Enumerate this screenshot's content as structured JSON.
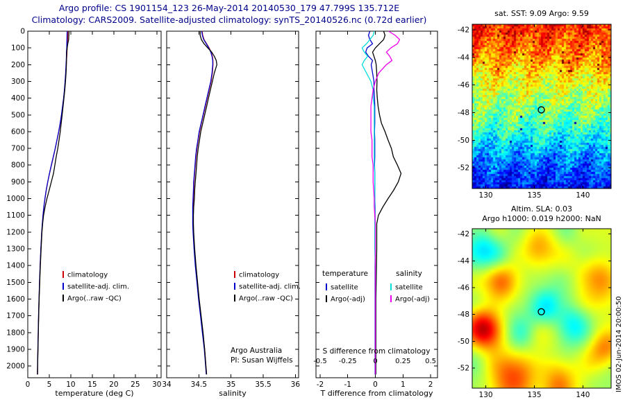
{
  "header": {
    "title_line1": "Argo profile: CS 1901154_123 26-May-2014 20140530_179 47.799S 135.712E",
    "title_line2": "Climatology: CARS2009. Satellite-adjusted climatology: synTS_20140526.nc (0.72d earlier)"
  },
  "watermark": "IMOS 02-Jun-2014 20:00:50",
  "depths": [
    0,
    25,
    50,
    75,
    100,
    125,
    150,
    175,
    200,
    250,
    300,
    350,
    400,
    450,
    500,
    550,
    600,
    650,
    700,
    750,
    800,
    850,
    900,
    950,
    1000,
    1050,
    1100,
    1150,
    1200,
    1300,
    1400,
    1500,
    1600,
    1700,
    1800,
    1900,
    2000,
    2050
  ],
  "depth_ticks": [
    0,
    100,
    200,
    300,
    400,
    500,
    600,
    700,
    800,
    900,
    1000,
    1100,
    1200,
    1300,
    1400,
    1500,
    1600,
    1700,
    1800,
    1900,
    2000
  ],
  "chart_data": [
    {
      "id": "temperature-profile",
      "type": "line",
      "xlabel": "temperature (deg C)",
      "xlim": [
        0,
        31
      ],
      "ylim": [
        0,
        2070
      ],
      "xticks": [
        0,
        5,
        10,
        15,
        20,
        25,
        30
      ],
      "legend": [
        {
          "label": "climatology",
          "color": "#cc0000"
        },
        {
          "label": "satellite-adj. clim.",
          "color": "#0000cc"
        },
        {
          "label": "Argo(..raw -QC)",
          "color": "#000000"
        }
      ],
      "series": [
        {
          "name": "climatology",
          "color": "#cc0000",
          "values": [
            9.3,
            9.28,
            9.25,
            9.2,
            9.15,
            9.1,
            9.05,
            9.0,
            8.95,
            8.85,
            8.7,
            8.55,
            8.35,
            8.1,
            7.85,
            7.55,
            7.2,
            6.8,
            6.4,
            5.95,
            5.5,
            5.05,
            4.65,
            4.3,
            4.0,
            3.75,
            3.55,
            3.4,
            3.25,
            3.05,
            2.88,
            2.74,
            2.62,
            2.52,
            2.43,
            2.35,
            2.28,
            2.25
          ]
        },
        {
          "name": "satellite-adj. clim.",
          "color": "#0000cc",
          "values": [
            9.15,
            9.13,
            9.1,
            9.08,
            9.05,
            9.0,
            8.97,
            8.94,
            8.9,
            8.8,
            8.67,
            8.52,
            8.33,
            8.08,
            7.83,
            7.53,
            7.18,
            6.78,
            6.38,
            5.93,
            5.48,
            5.03,
            4.63,
            4.28,
            3.98,
            3.73,
            3.53,
            3.38,
            3.24,
            3.04,
            2.87,
            2.73,
            2.61,
            2.51,
            2.42,
            2.34,
            2.27,
            2.24
          ]
        },
        {
          "name": "Argo(..raw -QC)",
          "color": "#000000",
          "values": [
            9.59,
            9.55,
            9.5,
            9.3,
            9.15,
            9.05,
            9.02,
            9.0,
            8.98,
            8.9,
            8.76,
            8.6,
            8.42,
            8.2,
            8.0,
            7.76,
            7.55,
            7.26,
            6.98,
            6.6,
            6.3,
            5.98,
            5.48,
            4.98,
            4.46,
            4.02,
            3.66,
            3.46,
            3.3,
            3.1,
            2.92,
            2.77,
            2.64,
            2.54,
            2.45,
            2.37,
            2.3,
            2.27
          ]
        }
      ]
    },
    {
      "id": "salinity-profile",
      "type": "line",
      "xlabel": "salinity",
      "xlim": [
        34.0,
        36.05
      ],
      "ylim": [
        0,
        2070
      ],
      "xticks": [
        34,
        34.5,
        35,
        35.5,
        36
      ],
      "annotation_line1": "Argo Australia",
      "annotation_line2": "PI: Susan Wijffels",
      "legend": [
        {
          "label": "climatology",
          "color": "#cc0000"
        },
        {
          "label": "satellite-adj. clim.",
          "color": "#0000cc"
        },
        {
          "label": "Argo(..raw -QC)",
          "color": "#000000"
        }
      ],
      "series": [
        {
          "name": "climatology",
          "color": "#cc0000",
          "values": [
            34.55,
            34.56,
            34.58,
            34.62,
            34.66,
            34.69,
            34.71,
            34.72,
            34.72,
            34.71,
            34.69,
            34.66,
            34.63,
            34.6,
            34.57,
            34.54,
            34.51,
            34.49,
            34.47,
            34.455,
            34.445,
            34.435,
            34.425,
            34.42,
            34.415,
            34.41,
            34.41,
            34.41,
            34.415,
            34.43,
            34.45,
            34.475,
            34.5,
            34.53,
            34.56,
            34.59,
            34.61,
            34.62
          ]
        },
        {
          "name": "satellite-adj. clim.",
          "color": "#0000cc",
          "values": [
            34.545,
            34.555,
            34.575,
            34.615,
            34.655,
            34.685,
            34.705,
            34.715,
            34.715,
            34.705,
            34.685,
            34.655,
            34.625,
            34.595,
            34.565,
            34.535,
            34.505,
            34.485,
            34.465,
            34.45,
            34.44,
            34.43,
            34.42,
            34.415,
            34.41,
            34.405,
            34.405,
            34.405,
            34.41,
            34.425,
            34.445,
            34.47,
            34.495,
            34.525,
            34.555,
            34.585,
            34.605,
            34.615
          ]
        },
        {
          "name": "Argo(..raw -QC)",
          "color": "#000000",
          "values": [
            34.52,
            34.52,
            34.54,
            34.58,
            34.64,
            34.7,
            34.74,
            34.77,
            34.78,
            34.74,
            34.71,
            34.68,
            34.65,
            34.62,
            34.59,
            34.56,
            34.53,
            34.51,
            34.49,
            34.475,
            34.465,
            34.455,
            34.445,
            34.435,
            34.43,
            34.42,
            34.415,
            34.415,
            34.42,
            34.435,
            34.455,
            34.48,
            34.505,
            34.535,
            34.565,
            34.59,
            34.61,
            34.62
          ]
        }
      ]
    },
    {
      "id": "difference-profile",
      "type": "line",
      "xlabel": "T difference from climatology",
      "xlabel_inner": "S difference from climatology",
      "xlim": [
        -2.15,
        2.25
      ],
      "ylim": [
        0,
        2070
      ],
      "xticks": [
        -2,
        -1,
        0,
        1,
        2
      ],
      "xticks_s": [
        -0.5,
        -0.25,
        0,
        0.25,
        0.5
      ],
      "s_scale": 4,
      "legend_temperature": {
        "header": "temperature",
        "entries": [
          {
            "label": "satellite",
            "color": "#0000cc"
          },
          {
            "label": "Argo(-adj)",
            "color": "#000000"
          }
        ]
      },
      "legend_salinity": {
        "header": "salinity",
        "entries": [
          {
            "label": "satellite",
            "color": "#00dddd"
          },
          {
            "label": "Argo(-adj)",
            "color": "#ee00ee"
          }
        ]
      },
      "series": [
        {
          "name": "T satellite",
          "axis": "T",
          "color": "#0000cc",
          "values": [
            -0.2,
            -0.25,
            -0.2,
            -0.1,
            -0.3,
            -0.35,
            -0.25,
            -0.1,
            -0.15,
            -0.1,
            -0.05,
            -0.05,
            -0.03,
            -0.02,
            -0.02,
            -0.02,
            -0.03,
            -0.02,
            -0.02,
            -0.02,
            -0.03,
            -0.02,
            -0.02,
            -0.02,
            -0.02,
            -0.01,
            -0.01,
            -0.01,
            -0.01,
            -0.01,
            -0.01,
            -0.01,
            -0.01,
            -0.01,
            -0.01,
            -0.01,
            -0.01,
            -0.01
          ]
        },
        {
          "name": "T Argo(-adj)",
          "axis": "T",
          "color": "#000000",
          "values": [
            0.3,
            0.35,
            0.3,
            0.15,
            0.0,
            -0.1,
            -0.05,
            0.0,
            0.03,
            0.05,
            0.06,
            0.05,
            0.07,
            0.1,
            0.15,
            0.22,
            0.35,
            0.46,
            0.58,
            0.65,
            0.8,
            0.93,
            0.83,
            0.66,
            0.46,
            0.27,
            0.11,
            0.05,
            0.05,
            0.05,
            0.04,
            0.03,
            0.02,
            0.02,
            0.02,
            0.02,
            0.02,
            0.02
          ]
        },
        {
          "name": "S satellite",
          "axis": "S",
          "color": "#00dddd",
          "values": [
            -0.01,
            -0.02,
            -0.05,
            -0.08,
            -0.12,
            -0.1,
            -0.07,
            -0.1,
            -0.12,
            -0.08,
            -0.04,
            -0.02,
            -0.02,
            -0.01,
            -0.01,
            -0.01,
            -0.01,
            -0.01,
            -0.01,
            -0.01,
            -0.01,
            -0.005,
            -0.005,
            -0.005,
            -0.005,
            -0.005,
            -0.005,
            -0.005,
            -0.005,
            -0.005,
            0,
            0,
            0,
            0,
            0,
            0,
            0,
            0
          ]
        },
        {
          "name": "S Argo(-adj)",
          "axis": "S",
          "color": "#ee00ee",
          "values": [
            0.12,
            0.18,
            0.22,
            0.2,
            0.14,
            0.1,
            0.13,
            0.15,
            0.1,
            0.03,
            0.0,
            -0.02,
            -0.03,
            -0.04,
            -0.04,
            -0.04,
            -0.04,
            -0.03,
            -0.03,
            -0.03,
            -0.02,
            -0.02,
            -0.02,
            -0.015,
            -0.01,
            -0.01,
            -0.005,
            0,
            0,
            0,
            0,
            0,
            0,
            0,
            0,
            0,
            0,
            0
          ]
        }
      ]
    },
    {
      "id": "sst-map",
      "type": "heatmap",
      "title": "sat. SST: 9.09 Argo: 9.59",
      "xticks": [
        130,
        135,
        140
      ],
      "yticks": [
        -42,
        -44,
        -46,
        -48,
        -50,
        -52
      ],
      "lon_range": [
        128.6,
        142.9
      ],
      "lat_range": [
        -41.6,
        -53.5
      ],
      "marker": {
        "lon": 135.712,
        "lat": -47.799
      },
      "style": "pixelated",
      "seed": 7,
      "noise_amp": 0.2,
      "lat_profile": [
        [
          0,
          0.84
        ],
        [
          0.12,
          0.78
        ],
        [
          0.22,
          0.72
        ],
        [
          0.32,
          0.63
        ],
        [
          0.45,
          0.55
        ],
        [
          0.58,
          0.47
        ],
        [
          0.7,
          0.37
        ],
        [
          0.82,
          0.25
        ],
        [
          1,
          0.13
        ]
      ]
    },
    {
      "id": "sla-map",
      "type": "heatmap",
      "title_line1": "Altim. SLA: 0.03",
      "title_line2": "Argo h1000: 0.019 h2000: NaN",
      "xticks": [
        130,
        135,
        140
      ],
      "yticks": [
        -42,
        -44,
        -46,
        -48,
        -50,
        -52
      ],
      "lon_range": [
        128.6,
        142.9
      ],
      "lat_range": [
        -41.6,
        -53.5
      ],
      "marker": {
        "lon": 135.712,
        "lat": -47.799
      },
      "style": "smooth",
      "seed": 11,
      "base": 0.54,
      "noise_amp": 0.16,
      "blobs": [
        {
          "x": 0.05,
          "y": 0.63,
          "a": 0.42,
          "s": 0.09
        },
        {
          "x": 0.3,
          "y": 0.97,
          "a": 0.3,
          "s": 0.12
        },
        {
          "x": 0.63,
          "y": 1.0,
          "a": 0.26,
          "s": 0.1
        },
        {
          "x": 0.88,
          "y": 0.32,
          "a": 0.2,
          "s": 0.1
        },
        {
          "x": 0.48,
          "y": 0.08,
          "a": 0.16,
          "s": 0.1
        },
        {
          "x": 0.75,
          "y": 0.62,
          "a": -0.2,
          "s": 0.09
        },
        {
          "x": 0.22,
          "y": 0.33,
          "a": 0.18,
          "s": 0.09
        },
        {
          "x": 0.55,
          "y": 0.47,
          "a": -0.12,
          "s": 0.08
        },
        {
          "x": 0.08,
          "y": 0.1,
          "a": -0.15,
          "s": 0.09
        },
        {
          "x": 0.97,
          "y": 0.78,
          "a": 0.22,
          "s": 0.08
        },
        {
          "x": 0.35,
          "y": 0.65,
          "a": -0.1,
          "s": 0.08
        }
      ]
    }
  ]
}
